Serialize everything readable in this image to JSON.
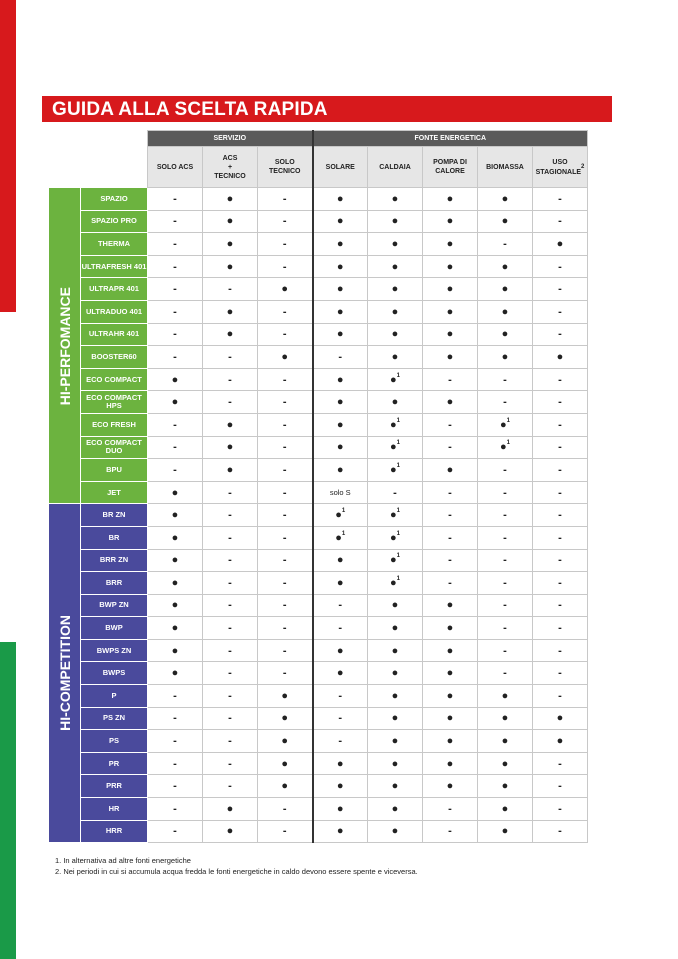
{
  "header": {
    "title": "GUIDA ALLA SCELTA RAPIDA"
  },
  "table": {
    "column_groups": [
      {
        "label": "SERVIZIO",
        "columns": [
          {
            "lines": [
              "SOLO ACS"
            ]
          },
          {
            "lines": [
              "ACS",
              "+",
              "TECNICO"
            ]
          },
          {
            "lines": [
              "SOLO",
              "TECNICO"
            ]
          }
        ]
      },
      {
        "label": "FONTE ENERGETICA",
        "columns": [
          {
            "lines": [
              "SOLARE"
            ]
          },
          {
            "lines": [
              "CALDAIA"
            ]
          },
          {
            "lines": [
              "POMPA DI",
              "CALORE"
            ]
          },
          {
            "lines": [
              "BIOMASSA"
            ]
          },
          {
            "lines": [
              "USO",
              "STAGIONALE"
            ],
            "sup": "2"
          }
        ]
      }
    ],
    "groups": [
      {
        "label": "HI-PERFOMANCE",
        "color": "#6cb33f",
        "rows": [
          {
            "name": "SPAZIO",
            "cells": [
              "-",
              "●",
              "-",
              "●",
              "●",
              "●",
              "●",
              "-"
            ]
          },
          {
            "name": "SPAZIO PRO",
            "cells": [
              "-",
              "●",
              "-",
              "●",
              "●",
              "●",
              "●",
              "-"
            ]
          },
          {
            "name": "THERMA",
            "cells": [
              "-",
              "●",
              "-",
              "●",
              "●",
              "●",
              "-",
              "●"
            ]
          },
          {
            "name": "ULTRAFRESH 401",
            "cells": [
              "-",
              "●",
              "-",
              "●",
              "●",
              "●",
              "●",
              "-"
            ]
          },
          {
            "name": "ULTRAPR 401",
            "cells": [
              "-",
              "-",
              "●",
              "●",
              "●",
              "●",
              "●",
              "-"
            ]
          },
          {
            "name": "ULTRADUO 401",
            "cells": [
              "-",
              "●",
              "-",
              "●",
              "●",
              "●",
              "●",
              "-"
            ]
          },
          {
            "name": "ULTRAHR 401",
            "cells": [
              "-",
              "●",
              "-",
              "●",
              "●",
              "●",
              "●",
              "-"
            ]
          },
          {
            "name": "BOOSTER60",
            "cells": [
              "-",
              "-",
              "●",
              "-",
              "●",
              "●",
              "●",
              "●"
            ]
          },
          {
            "name": "ECO COMPACT",
            "cells": [
              "●",
              "-",
              "-",
              "●",
              {
                "text": "●",
                "sup": "1"
              },
              "-",
              "-",
              "-"
            ]
          },
          {
            "name": "ECO COMPACT HPS",
            "cells": [
              "●",
              "-",
              "-",
              "●",
              "●",
              "●",
              "-",
              "-"
            ]
          },
          {
            "name": "ECO FRESH",
            "cells": [
              "-",
              "●",
              "-",
              "●",
              {
                "text": "●",
                "sup": "1"
              },
              "-",
              {
                "text": "●",
                "sup": "1"
              },
              "-"
            ]
          },
          {
            "name": "ECO COMPACT DUO",
            "cells": [
              "-",
              "●",
              "-",
              "●",
              {
                "text": "●",
                "sup": "1"
              },
              "-",
              {
                "text": "●",
                "sup": "1"
              },
              "-"
            ]
          },
          {
            "name": "BPU",
            "cells": [
              "-",
              "●",
              "-",
              "●",
              {
                "text": "●",
                "sup": "1"
              },
              "●",
              "-",
              "-"
            ]
          },
          {
            "name": "JET",
            "cells": [
              "●",
              "-",
              "-",
              "solo S",
              "-",
              "-",
              "-",
              "-"
            ]
          }
        ]
      },
      {
        "label": "HI-COMPETITION",
        "color": "#4a4a9c",
        "rows": [
          {
            "name": "BR ZN",
            "cells": [
              "●",
              "-",
              "-",
              {
                "text": "●",
                "sup": "1"
              },
              {
                "text": "●",
                "sup": "1"
              },
              "-",
              "-",
              "-"
            ]
          },
          {
            "name": "BR",
            "cells": [
              "●",
              "-",
              "-",
              {
                "text": "●",
                "sup": "1"
              },
              {
                "text": "●",
                "sup": "1"
              },
              "-",
              "-",
              "-"
            ]
          },
          {
            "name": "BRR ZN",
            "cells": [
              "●",
              "-",
              "-",
              "●",
              {
                "text": "●",
                "sup": "1"
              },
              "-",
              "-",
              "-"
            ]
          },
          {
            "name": "BRR",
            "cells": [
              "●",
              "-",
              "-",
              "●",
              {
                "text": "●",
                "sup": "1"
              },
              "-",
              "-",
              "-"
            ]
          },
          {
            "name": "BWP ZN",
            "cells": [
              "●",
              "-",
              "-",
              "-",
              "●",
              "●",
              "-",
              "-"
            ]
          },
          {
            "name": "BWP",
            "cells": [
              "●",
              "-",
              "-",
              "-",
              "●",
              "●",
              "-",
              "-"
            ]
          },
          {
            "name": "BWPS ZN",
            "cells": [
              "●",
              "-",
              "-",
              "●",
              "●",
              "●",
              "-",
              "-"
            ]
          },
          {
            "name": "BWPS",
            "cells": [
              "●",
              "-",
              "-",
              "●",
              "●",
              "●",
              "-",
              "-"
            ]
          },
          {
            "name": "P",
            "cells": [
              "-",
              "-",
              "●",
              "-",
              "●",
              "●",
              "●",
              "-"
            ]
          },
          {
            "name": "PS ZN",
            "cells": [
              "-",
              "-",
              "●",
              "-",
              "●",
              "●",
              "●",
              "●"
            ]
          },
          {
            "name": "PS",
            "cells": [
              "-",
              "-",
              "●",
              "-",
              "●",
              "●",
              "●",
              "●"
            ]
          },
          {
            "name": "PR",
            "cells": [
              "-",
              "-",
              "●",
              "●",
              "●",
              "●",
              "●",
              "-"
            ]
          },
          {
            "name": "PRR",
            "cells": [
              "-",
              "-",
              "●",
              "●",
              "●",
              "●",
              "●",
              "-"
            ]
          },
          {
            "name": "HR",
            "cells": [
              "-",
              "●",
              "-",
              "●",
              "●",
              "-",
              "●",
              "-"
            ]
          },
          {
            "name": "HRR",
            "cells": [
              "-",
              "●",
              "-",
              "●",
              "●",
              "-",
              "●",
              "-"
            ]
          }
        ]
      }
    ]
  },
  "footnotes": [
    "1.  In alternativa ad altre fonti energetiche",
    "2.  Nei periodi in cui si accumula acqua fredda le fonti energetiche in caldo devono essere spente e viceversa."
  ]
}
